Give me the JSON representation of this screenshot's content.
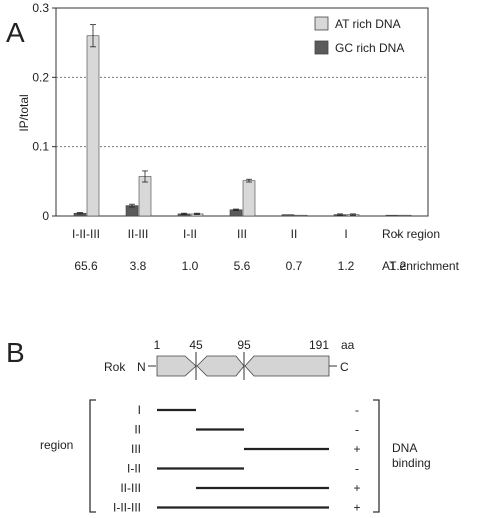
{
  "panel_a_label": "A",
  "panel_b_label": "B",
  "chart_data": {
    "type": "bar",
    "categories": [
      "I-II-III",
      "II-III",
      "I-II",
      "III",
      "II",
      "I",
      "-"
    ],
    "series": [
      {
        "name": "GC rich DNA",
        "values": [
          0.004,
          0.015,
          0.003,
          0.009,
          0.002,
          0.002,
          0.001
        ],
        "errors": [
          0.001,
          0.002,
          0.001,
          0.001,
          0.0,
          0.001,
          0.0
        ],
        "color": "#5a5a5a"
      },
      {
        "name": "AT rich DNA",
        "values": [
          0.26,
          0.057,
          0.003,
          0.051,
          0.001,
          0.002,
          0.001
        ],
        "errors": [
          0.016,
          0.008,
          0.001,
          0.002,
          0.0,
          0.001,
          0.0
        ],
        "color": "#d8d8d8"
      }
    ],
    "ylabel": "IP/total",
    "ylim": [
      0,
      0.3
    ],
    "yticks": [
      "0",
      "0.1",
      "0.2",
      "0.3"
    ],
    "grid": "dotted at 0.1 and 0.2",
    "legend": "top-right",
    "row_labels": [
      {
        "name": "Rok region",
        "values": [
          "I-II-III",
          "II-III",
          "I-II",
          "III",
          "II",
          "I",
          "-"
        ]
      },
      {
        "name": "AT enrichment",
        "values": [
          "65.6",
          "3.8",
          "1.0",
          "5.6",
          "0.7",
          "1.2",
          "1.2"
        ]
      }
    ]
  },
  "diagram": {
    "protein_label": "Rok",
    "n_term": "N",
    "c_term": "C",
    "positions": [
      "1",
      "45",
      "95",
      "191"
    ],
    "unit": "aa",
    "region_label": "region",
    "binding_label_1": "DNA",
    "binding_label_2": "binding",
    "constructs": [
      {
        "name": "I",
        "start": 1,
        "end": 45,
        "binding": "-"
      },
      {
        "name": "II",
        "start": 45,
        "end": 95,
        "binding": "-"
      },
      {
        "name": "III",
        "start": 95,
        "end": 191,
        "binding": "+"
      },
      {
        "name": "I-II",
        "start": 1,
        "end": 95,
        "binding": "-"
      },
      {
        "name": "II-III",
        "start": 45,
        "end": 191,
        "binding": "+"
      },
      {
        "name": "I-II-III",
        "start": 1,
        "end": 191,
        "binding": "+"
      }
    ]
  }
}
